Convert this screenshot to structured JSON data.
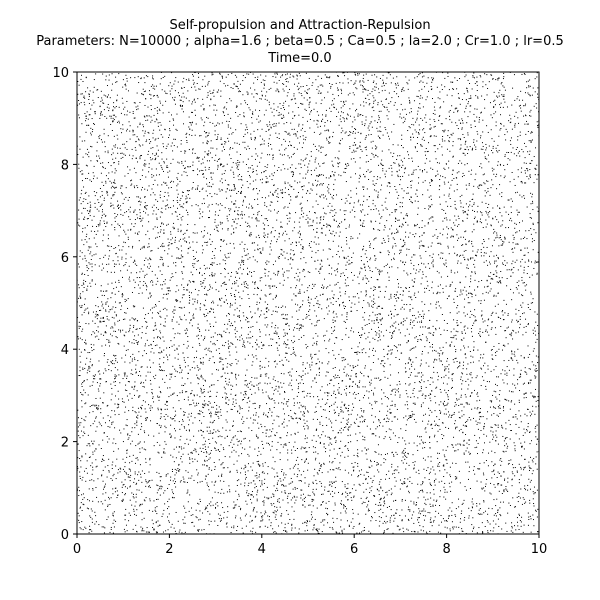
{
  "chart_data": {
    "type": "scatter",
    "title_lines": [
      "Self-propulsion and Attraction-Repulsion",
      "Parameters: N=10000 ; alpha=1.6 ; beta=0.5 ; Ca=0.5 ; la=2.0 ; Cr=1.0 ; lr=0.5",
      "Time=0.0"
    ],
    "xlabel": "",
    "ylabel": "",
    "xlim": [
      0,
      10
    ],
    "ylim": [
      0,
      10
    ],
    "x_ticks": [
      0,
      2,
      4,
      6,
      8,
      10
    ],
    "y_ticks": [
      0,
      2,
      4,
      6,
      8,
      10
    ],
    "grid": false,
    "marker_color": "#000000",
    "point_count": 10000,
    "distribution": "uniform-random"
  }
}
